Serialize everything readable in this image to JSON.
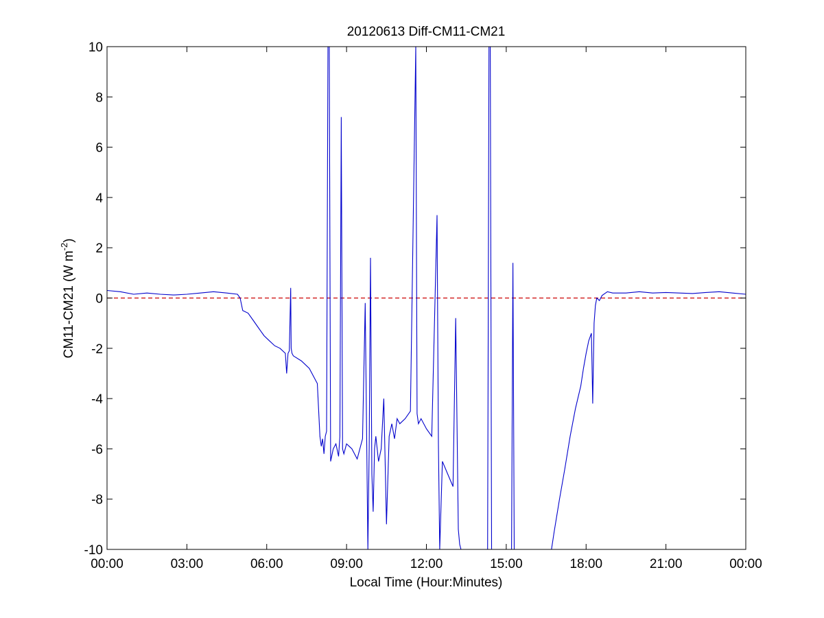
{
  "chart_data": {
    "type": "line",
    "title": "20120613 Diff-CM11-CM21",
    "xlabel": "Local Time (Hour:Minutes)",
    "ylabel_main": "CM11-CM21 (W m",
    "ylabel_sup": "-2",
    "ylabel_close": ")",
    "xlim": [
      0,
      24
    ],
    "ylim": [
      -10,
      10
    ],
    "xticks": [
      {
        "value": 0,
        "label": "00:00"
      },
      {
        "value": 3,
        "label": "03:00"
      },
      {
        "value": 6,
        "label": "06:00"
      },
      {
        "value": 9,
        "label": "09:00"
      },
      {
        "value": 12,
        "label": "12:00"
      },
      {
        "value": 15,
        "label": "15:00"
      },
      {
        "value": 18,
        "label": "18:00"
      },
      {
        "value": 21,
        "label": "21:00"
      },
      {
        "value": 24,
        "label": "00:00"
      }
    ],
    "yticks": [
      {
        "value": -10,
        "label": "-10"
      },
      {
        "value": -8,
        "label": "-8"
      },
      {
        "value": -6,
        "label": "-6"
      },
      {
        "value": -4,
        "label": "-4"
      },
      {
        "value": -2,
        "label": "-2"
      },
      {
        "value": 0,
        "label": "0"
      },
      {
        "value": 2,
        "label": "2"
      },
      {
        "value": 4,
        "label": "4"
      },
      {
        "value": 6,
        "label": "6"
      },
      {
        "value": 8,
        "label": "8"
      },
      {
        "value": 10,
        "label": "10"
      }
    ],
    "reference_line": {
      "y": 0,
      "color": "#cc0000",
      "style": "dashed"
    },
    "series": [
      {
        "color": "#0000cc",
        "x": [
          0.0,
          0.5,
          1.0,
          1.5,
          2.0,
          2.5,
          3.0,
          3.5,
          4.0,
          4.5,
          4.9,
          5.0,
          5.1,
          5.3,
          5.5,
          5.7,
          5.9,
          6.1,
          6.3,
          6.5,
          6.7,
          6.75,
          6.8,
          6.85,
          6.9,
          6.92,
          6.95,
          7.0,
          7.3,
          7.6,
          7.9,
          8.0,
          8.05,
          8.1,
          8.15,
          8.2,
          8.25,
          8.3,
          8.35,
          8.4,
          8.5,
          8.6,
          8.7,
          8.75,
          8.8,
          8.85,
          8.9,
          9.0,
          9.2,
          9.4,
          9.6,
          9.7,
          9.8,
          9.85,
          9.9,
          9.95,
          10.0,
          10.05,
          10.1,
          10.2,
          10.3,
          10.4,
          10.5,
          10.6,
          10.7,
          10.8,
          10.9,
          11.0,
          11.2,
          11.4,
          11.6,
          11.65,
          11.7,
          11.8,
          12.0,
          12.2,
          12.4,
          12.45,
          12.5,
          12.6,
          12.8,
          13.0,
          13.1,
          13.2,
          13.25,
          13.3,
          13.4,
          13.5,
          14.3,
          14.35,
          14.4,
          14.45,
          15.2,
          15.25,
          15.3,
          16.7,
          16.8,
          17.0,
          17.2,
          17.4,
          17.6,
          17.8,
          17.9,
          18.0,
          18.1,
          18.2,
          18.25,
          18.3,
          18.35,
          18.4,
          18.5,
          18.6,
          18.8,
          19.0,
          19.5,
          20.0,
          20.5,
          21.0,
          21.5,
          22.0,
          22.5,
          23.0,
          23.5,
          24.0
        ],
        "y": [
          0.3,
          0.25,
          0.15,
          0.2,
          0.15,
          0.12,
          0.15,
          0.2,
          0.25,
          0.2,
          0.15,
          0.0,
          -0.5,
          -0.6,
          -0.9,
          -1.2,
          -1.5,
          -1.7,
          -1.9,
          -2.0,
          -2.2,
          -3.0,
          -2.2,
          -2.1,
          0.4,
          -2.0,
          -2.2,
          -2.3,
          -2.5,
          -2.8,
          -3.4,
          -5.5,
          -5.9,
          -5.6,
          -6.2,
          -5.5,
          -5.3,
          10.0,
          10.0,
          -6.5,
          -6.0,
          -5.8,
          -6.3,
          -5.5,
          7.2,
          -6.0,
          -6.2,
          -5.8,
          -6.0,
          -6.4,
          -5.6,
          -0.2,
          -10.0,
          -6.0,
          1.6,
          -7.0,
          -8.5,
          -6.0,
          -5.5,
          -6.5,
          -6.0,
          -4.0,
          -9.0,
          -5.5,
          -5.0,
          -5.6,
          -4.8,
          -5.0,
          -4.8,
          -4.5,
          10.0,
          -4.6,
          -5.0,
          -4.8,
          -5.2,
          -5.5,
          3.3,
          -5.8,
          -10.0,
          -6.5,
          -7.0,
          -7.5,
          -0.8,
          -9.2,
          -9.8,
          -10.0,
          -10.0,
          -10.0,
          -10.0,
          10.0,
          10.0,
          -10.0,
          -10.0,
          1.4,
          -10.0,
          -10.0,
          -9.3,
          -8.0,
          -6.8,
          -5.5,
          -4.4,
          -3.5,
          -2.8,
          -2.2,
          -1.7,
          -1.4,
          -4.2,
          -1.0,
          -0.3,
          0.0,
          -0.1,
          0.1,
          0.25,
          0.2,
          0.2,
          0.25,
          0.2,
          0.22,
          0.2,
          0.18,
          0.22,
          0.25,
          0.2,
          0.15
        ]
      }
    ]
  }
}
